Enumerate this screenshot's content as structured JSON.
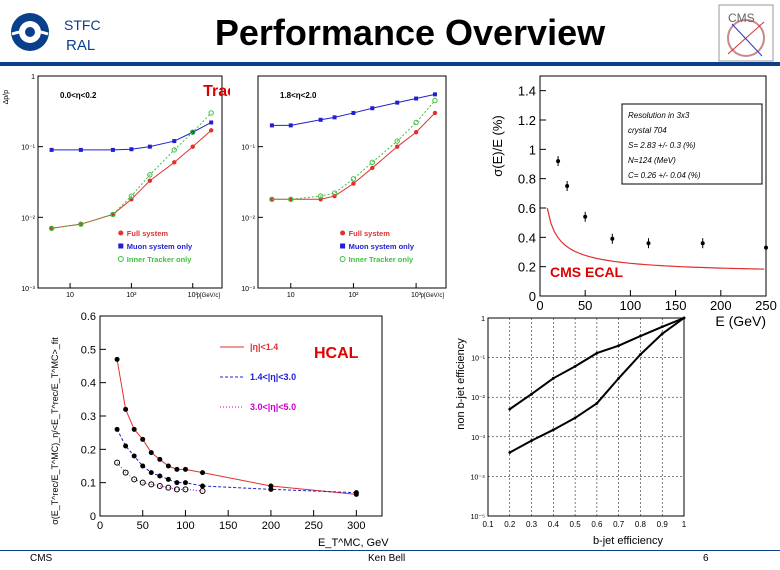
{
  "header": {
    "org_line1": "STFC",
    "org_line2": "RAL",
    "title": "Performance Overview",
    "cms_logo_text": "CMS"
  },
  "footer": {
    "left": "CMS",
    "center": "Ken Bell",
    "right": "6"
  },
  "colors": {
    "navy": "#0a3f8c",
    "red": "#e03030",
    "blue": "#2020d0",
    "green": "#40c040",
    "caption_red": "#e00000",
    "magenta": "#cc00cc"
  },
  "chart_data": [
    {
      "name": "tracking-left",
      "type": "line",
      "caption": "Tracking",
      "annotation": "0.0<η<0.2",
      "ylabel": "Δp/p",
      "xlabel": "p[GeV/c]",
      "yscale": "log",
      "xscale": "log",
      "ylim": [
        0.001,
        1
      ],
      "xlim": [
        3,
        3000
      ],
      "yticks": [
        "1",
        "10⁻¹",
        "10⁻²",
        "10⁻³"
      ],
      "xticks": [
        "10",
        "10²",
        "10³"
      ],
      "legend": [
        "Full system",
        "Muon system only",
        "Inner Tracker only"
      ],
      "series": [
        {
          "name": "Full system",
          "color": "#e03030",
          "x": [
            5,
            15,
            50,
            100,
            200,
            500,
            1000,
            2000
          ],
          "y": [
            0.007,
            0.008,
            0.011,
            0.018,
            0.033,
            0.06,
            0.1,
            0.17
          ]
        },
        {
          "name": "Muon system only",
          "color": "#2020d0",
          "x": [
            5,
            15,
            50,
            100,
            200,
            500,
            1000,
            2000
          ],
          "y": [
            0.09,
            0.09,
            0.09,
            0.092,
            0.1,
            0.12,
            0.16,
            0.22
          ]
        },
        {
          "name": "Inner Tracker only",
          "color": "#40c040",
          "x": [
            5,
            15,
            50,
            100,
            200,
            500,
            1000,
            2000
          ],
          "y": [
            0.007,
            0.008,
            0.011,
            0.02,
            0.04,
            0.09,
            0.16,
            0.3
          ]
        }
      ]
    },
    {
      "name": "tracking-right",
      "type": "line",
      "annotation": "1.8<η<2.0",
      "xlabel": "p[GeV/c]",
      "yscale": "log",
      "xscale": "log",
      "ylim": [
        0.001,
        1
      ],
      "xlim": [
        3,
        3000
      ],
      "yticks": [
        "10⁻¹",
        "10⁻²",
        "10⁻³"
      ],
      "xticks": [
        "10",
        "10²",
        "10³"
      ],
      "legend": [
        "Full system",
        "Muon system only",
        "Inner Tracker only"
      ],
      "series": [
        {
          "name": "Full system",
          "color": "#e03030",
          "x": [
            5,
            10,
            30,
            50,
            100,
            200,
            500,
            1000,
            2000
          ],
          "y": [
            0.018,
            0.018,
            0.018,
            0.02,
            0.03,
            0.05,
            0.1,
            0.16,
            0.3
          ]
        },
        {
          "name": "Muon system only",
          "color": "#2020d0",
          "x": [
            5,
            10,
            30,
            50,
            100,
            200,
            500,
            1000,
            2000
          ],
          "y": [
            0.2,
            0.2,
            0.24,
            0.26,
            0.3,
            0.35,
            0.42,
            0.48,
            0.55
          ]
        },
        {
          "name": "Inner Tracker only",
          "color": "#40c040",
          "x": [
            5,
            10,
            30,
            50,
            100,
            200,
            500,
            1000,
            2000
          ],
          "y": [
            0.018,
            0.018,
            0.02,
            0.022,
            0.035,
            0.06,
            0.12,
            0.22,
            0.45
          ]
        }
      ]
    },
    {
      "name": "ecal",
      "type": "scatter",
      "caption": "CMS ECAL",
      "ylabel": "σ(E)/E (%)",
      "xlabel": "E (GeV)",
      "xlim": [
        0,
        250
      ],
      "ylim": [
        0,
        1.5
      ],
      "xticks": [
        0,
        50,
        100,
        150,
        200,
        250
      ],
      "yticks": [
        0,
        0.2,
        0.4,
        0.6,
        0.8,
        1,
        1.2,
        1.4
      ],
      "info_box": [
        "Resolution in 3x3",
        "crystal 704",
        "S= 2.83 +/- 0.3 (%)",
        "N=124 (MeV)",
        "C= 0.26 +/- 0.04 (%)"
      ],
      "series": [
        {
          "name": "data",
          "color": "#000000",
          "x": [
            20,
            30,
            50,
            80,
            120,
            180,
            250
          ],
          "y": [
            0.92,
            0.75,
            0.54,
            0.39,
            0.36,
            0.36,
            0.33
          ]
        }
      ]
    },
    {
      "name": "hcal",
      "type": "scatter",
      "caption": "HCAL",
      "ylabel": "σ(E_T^rec/E_T^MC)_η/<E_T^rec/E_T^MC>_fit",
      "xlabel": "E_T^MC, GeV",
      "xlim": [
        0,
        330
      ],
      "ylim": [
        0,
        0.6
      ],
      "xticks": [
        0,
        50,
        100,
        150,
        200,
        250,
        300
      ],
      "yticks": [
        0,
        0.1,
        0.2,
        0.3,
        0.4,
        0.5,
        0.6
      ],
      "legend": [
        "|η|<1.4",
        "1.4<|η|<3.0",
        "3.0<|η|<5.0"
      ],
      "series": [
        {
          "name": "|η|<1.4",
          "color": "#e03030",
          "x": [
            20,
            30,
            40,
            50,
            60,
            70,
            80,
            90,
            100,
            120,
            200,
            300
          ],
          "y": [
            0.47,
            0.32,
            0.26,
            0.23,
            0.19,
            0.17,
            0.15,
            0.14,
            0.14,
            0.13,
            0.09,
            0.065
          ]
        },
        {
          "name": "1.4<|η|<3.0",
          "color": "#2020d0",
          "x": [
            20,
            30,
            40,
            50,
            60,
            70,
            80,
            90,
            100,
            120,
            200,
            300
          ],
          "y": [
            0.26,
            0.21,
            0.18,
            0.15,
            0.13,
            0.12,
            0.11,
            0.1,
            0.1,
            0.09,
            0.08,
            0.07
          ]
        },
        {
          "name": "3.0<|η|<5.0",
          "color": "#cc00cc",
          "x": [
            20,
            30,
            40,
            50,
            60,
            70,
            80,
            90,
            100,
            120
          ],
          "y": [
            0.16,
            0.13,
            0.11,
            0.1,
            0.095,
            0.09,
            0.085,
            0.08,
            0.08,
            0.075
          ]
        }
      ]
    },
    {
      "name": "btag",
      "type": "line",
      "ylabel": "non b-jet efficiency",
      "xlabel": "b-jet efficiency",
      "yscale": "log",
      "xlim": [
        0.1,
        1
      ],
      "ylim": [
        1e-05,
        1
      ],
      "xticks": [
        "0.1",
        "0.2",
        "0.3",
        "0.4",
        "0.5",
        "0.6",
        "0.7",
        "0.8",
        "0.9",
        "1"
      ],
      "yticks": [
        "1",
        "10⁻¹",
        "10⁻²",
        "10⁻³",
        "10⁻⁴",
        "10⁻⁵"
      ],
      "series": [
        {
          "name": "upper",
          "color": "#000000",
          "x": [
            0.2,
            0.3,
            0.4,
            0.5,
            0.6,
            0.7,
            0.8,
            0.9,
            1.0
          ],
          "y": [
            0.005,
            0.012,
            0.03,
            0.06,
            0.13,
            0.2,
            0.35,
            0.6,
            1.0
          ]
        },
        {
          "name": "lower",
          "color": "#000000",
          "x": [
            0.2,
            0.3,
            0.4,
            0.5,
            0.6,
            0.7,
            0.8,
            0.9,
            1.0
          ],
          "y": [
            0.0004,
            0.0008,
            0.0015,
            0.003,
            0.007,
            0.03,
            0.12,
            0.4,
            1.0
          ]
        }
      ]
    }
  ]
}
